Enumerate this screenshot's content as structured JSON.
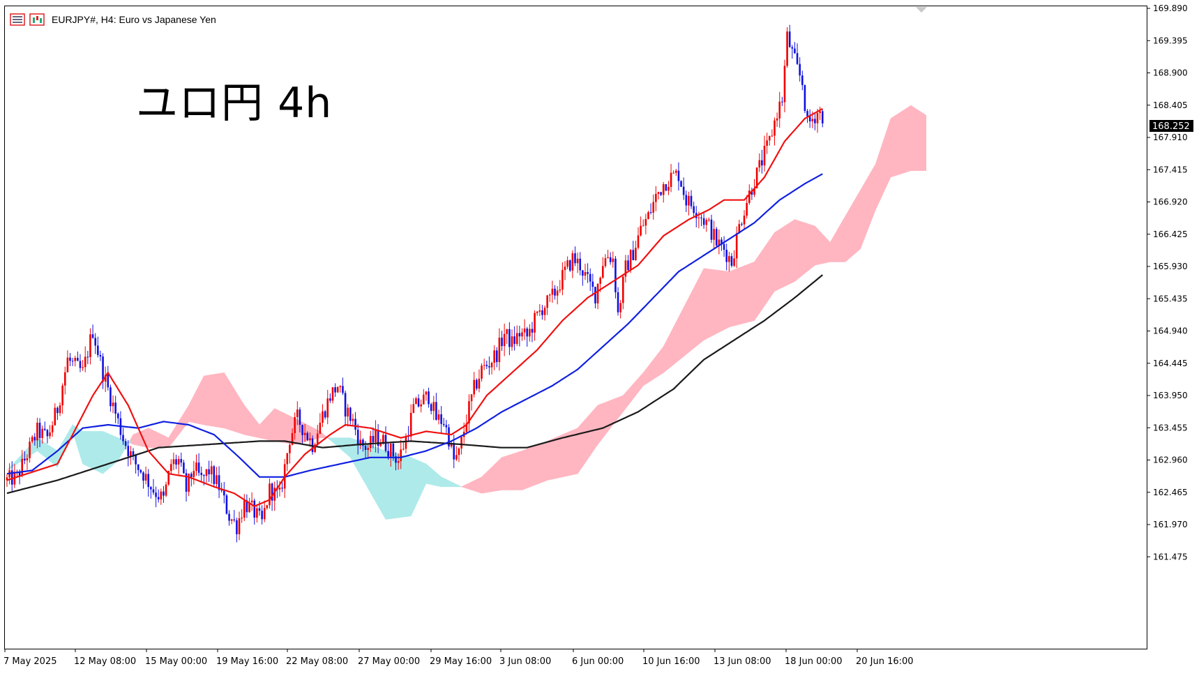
{
  "header": {
    "symbol_text": "EURJPY#, H4:  Euro vs Japanese Yen",
    "icons": [
      "chart-list-icon",
      "price-chart-icon"
    ]
  },
  "overlay_title": "ユロ円 4h",
  "colors": {
    "bull": "#f00000",
    "bear": "#1010e0",
    "ma_fast": "#f01010",
    "ma_mid": "#1020e0",
    "ma_slow": "#1a1a1a",
    "cloud_bull": "#ffb6c1",
    "cloud_bear": "#aeeaea",
    "current_price_bg": "#000000",
    "current_price_fg": "#ffffff"
  },
  "chart_data": {
    "type": "candlestick",
    "title": "EURJPY#, H4:  Euro vs Japanese Yen",
    "xlabel": "",
    "ylabel": "",
    "ylim": [
      161.0,
      169.95
    ],
    "y_ticks": [
      "169.890",
      "169.395",
      "168.900",
      "168.405",
      "167.910",
      "167.415",
      "166.920",
      "166.425",
      "165.930",
      "165.435",
      "164.940",
      "164.445",
      "163.950",
      "163.455",
      "162.960",
      "162.465",
      "161.970",
      "161.475"
    ],
    "x_ticks": [
      "7 May 2025",
      "12 May 08:00",
      "15 May 00:00",
      "19 May 16:00",
      "22 May 08:00",
      "27 May 00:00",
      "29 May 16:00",
      "3 Jun 08:00",
      "6 Jun 00:00",
      "10 Jun 16:00",
      "13 Jun 08:00",
      "18 Jun 00:00",
      "20 Jun 16:00"
    ],
    "current_price": "168.252",
    "grid": false,
    "close_path": [
      [
        0,
        162.65
      ],
      [
        4,
        162.7
      ],
      [
        8,
        163.05
      ],
      [
        12,
        163.4
      ],
      [
        16,
        163.3
      ],
      [
        20,
        163.75
      ],
      [
        24,
        164.5
      ],
      [
        27,
        164.4
      ],
      [
        30,
        164.3
      ],
      [
        34,
        164.95
      ],
      [
        38,
        164.3
      ],
      [
        42,
        163.8
      ],
      [
        46,
        163.3
      ],
      [
        50,
        162.95
      ],
      [
        54,
        162.75
      ],
      [
        58,
        162.5
      ],
      [
        62,
        162.35
      ],
      [
        65,
        162.9
      ],
      [
        68,
        162.95
      ],
      [
        71,
        162.5
      ],
      [
        74,
        162.85
      ],
      [
        77,
        162.65
      ],
      [
        80,
        162.8
      ],
      [
        84,
        162.55
      ],
      [
        88,
        162.1
      ],
      [
        91,
        161.95
      ],
      [
        94,
        162.3
      ],
      [
        97,
        162.2
      ],
      [
        101,
        162.0
      ],
      [
        104,
        162.5
      ],
      [
        108,
        162.4
      ],
      [
        112,
        163.3
      ],
      [
        115,
        163.6
      ],
      [
        118,
        163.4
      ],
      [
        121,
        163.2
      ],
      [
        125,
        163.65
      ],
      [
        128,
        163.95
      ],
      [
        131,
        164.1
      ],
      [
        134,
        163.75
      ],
      [
        137,
        163.55
      ],
      [
        140,
        163.2
      ],
      [
        143,
        163.15
      ],
      [
        146,
        163.3
      ],
      [
        149,
        163.25
      ],
      [
        152,
        163.1
      ],
      [
        155,
        162.95
      ],
      [
        158,
        163.3
      ],
      [
        161,
        163.75
      ],
      [
        164,
        163.85
      ],
      [
        167,
        163.95
      ],
      [
        170,
        163.6
      ],
      [
        173,
        163.55
      ],
      [
        175,
        163.3
      ],
      [
        177,
        162.95
      ],
      [
        179,
        163.05
      ],
      [
        182,
        163.6
      ],
      [
        185,
        164.05
      ],
      [
        188,
        164.35
      ],
      [
        191,
        164.45
      ],
      [
        194,
        164.6
      ],
      [
        197,
        164.9
      ],
      [
        200,
        164.75
      ],
      [
        203,
        164.9
      ],
      [
        206,
        164.85
      ],
      [
        209,
        165.1
      ],
      [
        212,
        165.3
      ],
      [
        215,
        165.4
      ],
      [
        218,
        165.6
      ],
      [
        221,
        165.85
      ],
      [
        224,
        166.05
      ],
      [
        227,
        165.95
      ],
      [
        230,
        165.7
      ],
      [
        233,
        165.5
      ],
      [
        236,
        166.0
      ],
      [
        238,
        166.1
      ],
      [
        240,
        166.05
      ],
      [
        242,
        165.2
      ],
      [
        245,
        165.9
      ],
      [
        248,
        166.15
      ],
      [
        251,
        166.5
      ],
      [
        254,
        166.7
      ],
      [
        257,
        167.0
      ],
      [
        260,
        167.2
      ],
      [
        263,
        167.3
      ],
      [
        266,
        167.35
      ],
      [
        269,
        166.95
      ],
      [
        272,
        166.85
      ],
      [
        275,
        166.7
      ],
      [
        278,
        166.55
      ],
      [
        281,
        166.3
      ],
      [
        284,
        166.2
      ],
      [
        287,
        166.0
      ],
      [
        290,
        166.55
      ],
      [
        293,
        166.95
      ],
      [
        296,
        167.25
      ],
      [
        299,
        167.55
      ],
      [
        302,
        167.85
      ],
      [
        305,
        168.3
      ],
      [
        307,
        168.5
      ],
      [
        309,
        169.45
      ],
      [
        311,
        169.2
      ],
      [
        313,
        168.95
      ],
      [
        315,
        168.75
      ],
      [
        317,
        168.1
      ],
      [
        319,
        168.2
      ],
      [
        321,
        168.3
      ],
      [
        323,
        168.25
      ]
    ],
    "ma_fast": [
      [
        0,
        162.65
      ],
      [
        20,
        162.9
      ],
      [
        34,
        163.95
      ],
      [
        40,
        164.3
      ],
      [
        48,
        163.8
      ],
      [
        56,
        163.1
      ],
      [
        64,
        162.75
      ],
      [
        72,
        162.7
      ],
      [
        82,
        162.55
      ],
      [
        90,
        162.45
      ],
      [
        98,
        162.25
      ],
      [
        104,
        162.35
      ],
      [
        110,
        162.7
      ],
      [
        118,
        163.05
      ],
      [
        128,
        163.35
      ],
      [
        134,
        163.5
      ],
      [
        144,
        163.45
      ],
      [
        156,
        163.3
      ],
      [
        166,
        163.4
      ],
      [
        176,
        163.35
      ],
      [
        182,
        163.5
      ],
      [
        190,
        163.95
      ],
      [
        200,
        164.3
      ],
      [
        210,
        164.65
      ],
      [
        220,
        165.1
      ],
      [
        230,
        165.45
      ],
      [
        240,
        165.7
      ],
      [
        250,
        165.95
      ],
      [
        260,
        166.4
      ],
      [
        270,
        166.65
      ],
      [
        278,
        166.8
      ],
      [
        284,
        166.95
      ],
      [
        292,
        166.95
      ],
      [
        300,
        167.3
      ],
      [
        308,
        167.85
      ],
      [
        316,
        168.2
      ],
      [
        323,
        168.35
      ]
    ],
    "ma_mid": [
      [
        0,
        162.75
      ],
      [
        10,
        162.8
      ],
      [
        20,
        163.1
      ],
      [
        30,
        163.45
      ],
      [
        40,
        163.5
      ],
      [
        52,
        163.45
      ],
      [
        62,
        163.55
      ],
      [
        72,
        163.5
      ],
      [
        82,
        163.35
      ],
      [
        92,
        163.0
      ],
      [
        100,
        162.7
      ],
      [
        110,
        162.7
      ],
      [
        120,
        162.8
      ],
      [
        132,
        162.9
      ],
      [
        144,
        163.0
      ],
      [
        156,
        163.0
      ],
      [
        166,
        163.1
      ],
      [
        176,
        163.25
      ],
      [
        186,
        163.45
      ],
      [
        196,
        163.7
      ],
      [
        206,
        163.9
      ],
      [
        216,
        164.1
      ],
      [
        226,
        164.35
      ],
      [
        236,
        164.7
      ],
      [
        246,
        165.05
      ],
      [
        256,
        165.45
      ],
      [
        266,
        165.85
      ],
      [
        276,
        166.1
      ],
      [
        286,
        166.35
      ],
      [
        296,
        166.6
      ],
      [
        306,
        166.95
      ],
      [
        316,
        167.2
      ],
      [
        323,
        167.35
      ]
    ],
    "ma_slow": [
      [
        0,
        162.45
      ],
      [
        20,
        162.65
      ],
      [
        40,
        162.9
      ],
      [
        60,
        163.15
      ],
      [
        80,
        163.2
      ],
      [
        100,
        163.25
      ],
      [
        110,
        163.25
      ],
      [
        125,
        163.15
      ],
      [
        140,
        163.2
      ],
      [
        160,
        163.25
      ],
      [
        180,
        163.2
      ],
      [
        196,
        163.15
      ],
      [
        206,
        163.15
      ],
      [
        220,
        163.3
      ],
      [
        236,
        163.45
      ],
      [
        250,
        163.7
      ],
      [
        264,
        164.05
      ],
      [
        276,
        164.5
      ],
      [
        288,
        164.8
      ],
      [
        300,
        165.1
      ],
      [
        312,
        165.45
      ],
      [
        323,
        165.8
      ]
    ],
    "cloud": [
      [
        0,
        162.8,
        162.8
      ],
      [
        12,
        163.3,
        163.1
      ],
      [
        20,
        163.1,
        162.85
      ],
      [
        26,
        163.5,
        163.4
      ],
      [
        30,
        163.4,
        162.9
      ],
      [
        38,
        163.4,
        162.75
      ],
      [
        44,
        163.3,
        162.95
      ],
      [
        50,
        163.2,
        163.35
      ],
      [
        56,
        163.15,
        163.45
      ],
      [
        64,
        163.15,
        163.3
      ],
      [
        72,
        163.55,
        163.8
      ],
      [
        78,
        163.5,
        164.25
      ],
      [
        86,
        163.45,
        164.3
      ],
      [
        94,
        163.35,
        163.8
      ],
      [
        100,
        163.3,
        163.5
      ],
      [
        106,
        163.25,
        163.75
      ],
      [
        114,
        163.2,
        163.6
      ],
      [
        124,
        163.3,
        163.4
      ],
      [
        136,
        163.3,
        163.0
      ],
      [
        150,
        163.1,
        162.05
      ],
      [
        160,
        163.0,
        162.1
      ],
      [
        166,
        162.9,
        162.6
      ],
      [
        172,
        162.7,
        162.55
      ],
      [
        180,
        162.55,
        162.55
      ],
      [
        188,
        162.45,
        162.7
      ],
      [
        196,
        162.5,
        163.0
      ],
      [
        204,
        162.5,
        163.1
      ],
      [
        214,
        162.65,
        163.25
      ],
      [
        226,
        162.75,
        163.45
      ],
      [
        234,
        163.2,
        163.8
      ],
      [
        244,
        163.7,
        163.95
      ],
      [
        252,
        164.1,
        164.3
      ],
      [
        260,
        164.3,
        164.7
      ],
      [
        268,
        164.55,
        165.3
      ],
      [
        276,
        164.8,
        165.9
      ],
      [
        286,
        165.0,
        165.85
      ],
      [
        296,
        165.1,
        166.0
      ],
      [
        304,
        165.55,
        166.45
      ],
      [
        312,
        165.7,
        166.65
      ],
      [
        320,
        165.95,
        166.55
      ],
      [
        326,
        166.0,
        166.3
      ],
      [
        332,
        166.0,
        166.7
      ],
      [
        338,
        166.2,
        167.1
      ],
      [
        344,
        166.8,
        167.5
      ],
      [
        350,
        167.3,
        168.2
      ],
      [
        358,
        167.4,
        168.4
      ],
      [
        364,
        167.4,
        168.25
      ]
    ]
  }
}
